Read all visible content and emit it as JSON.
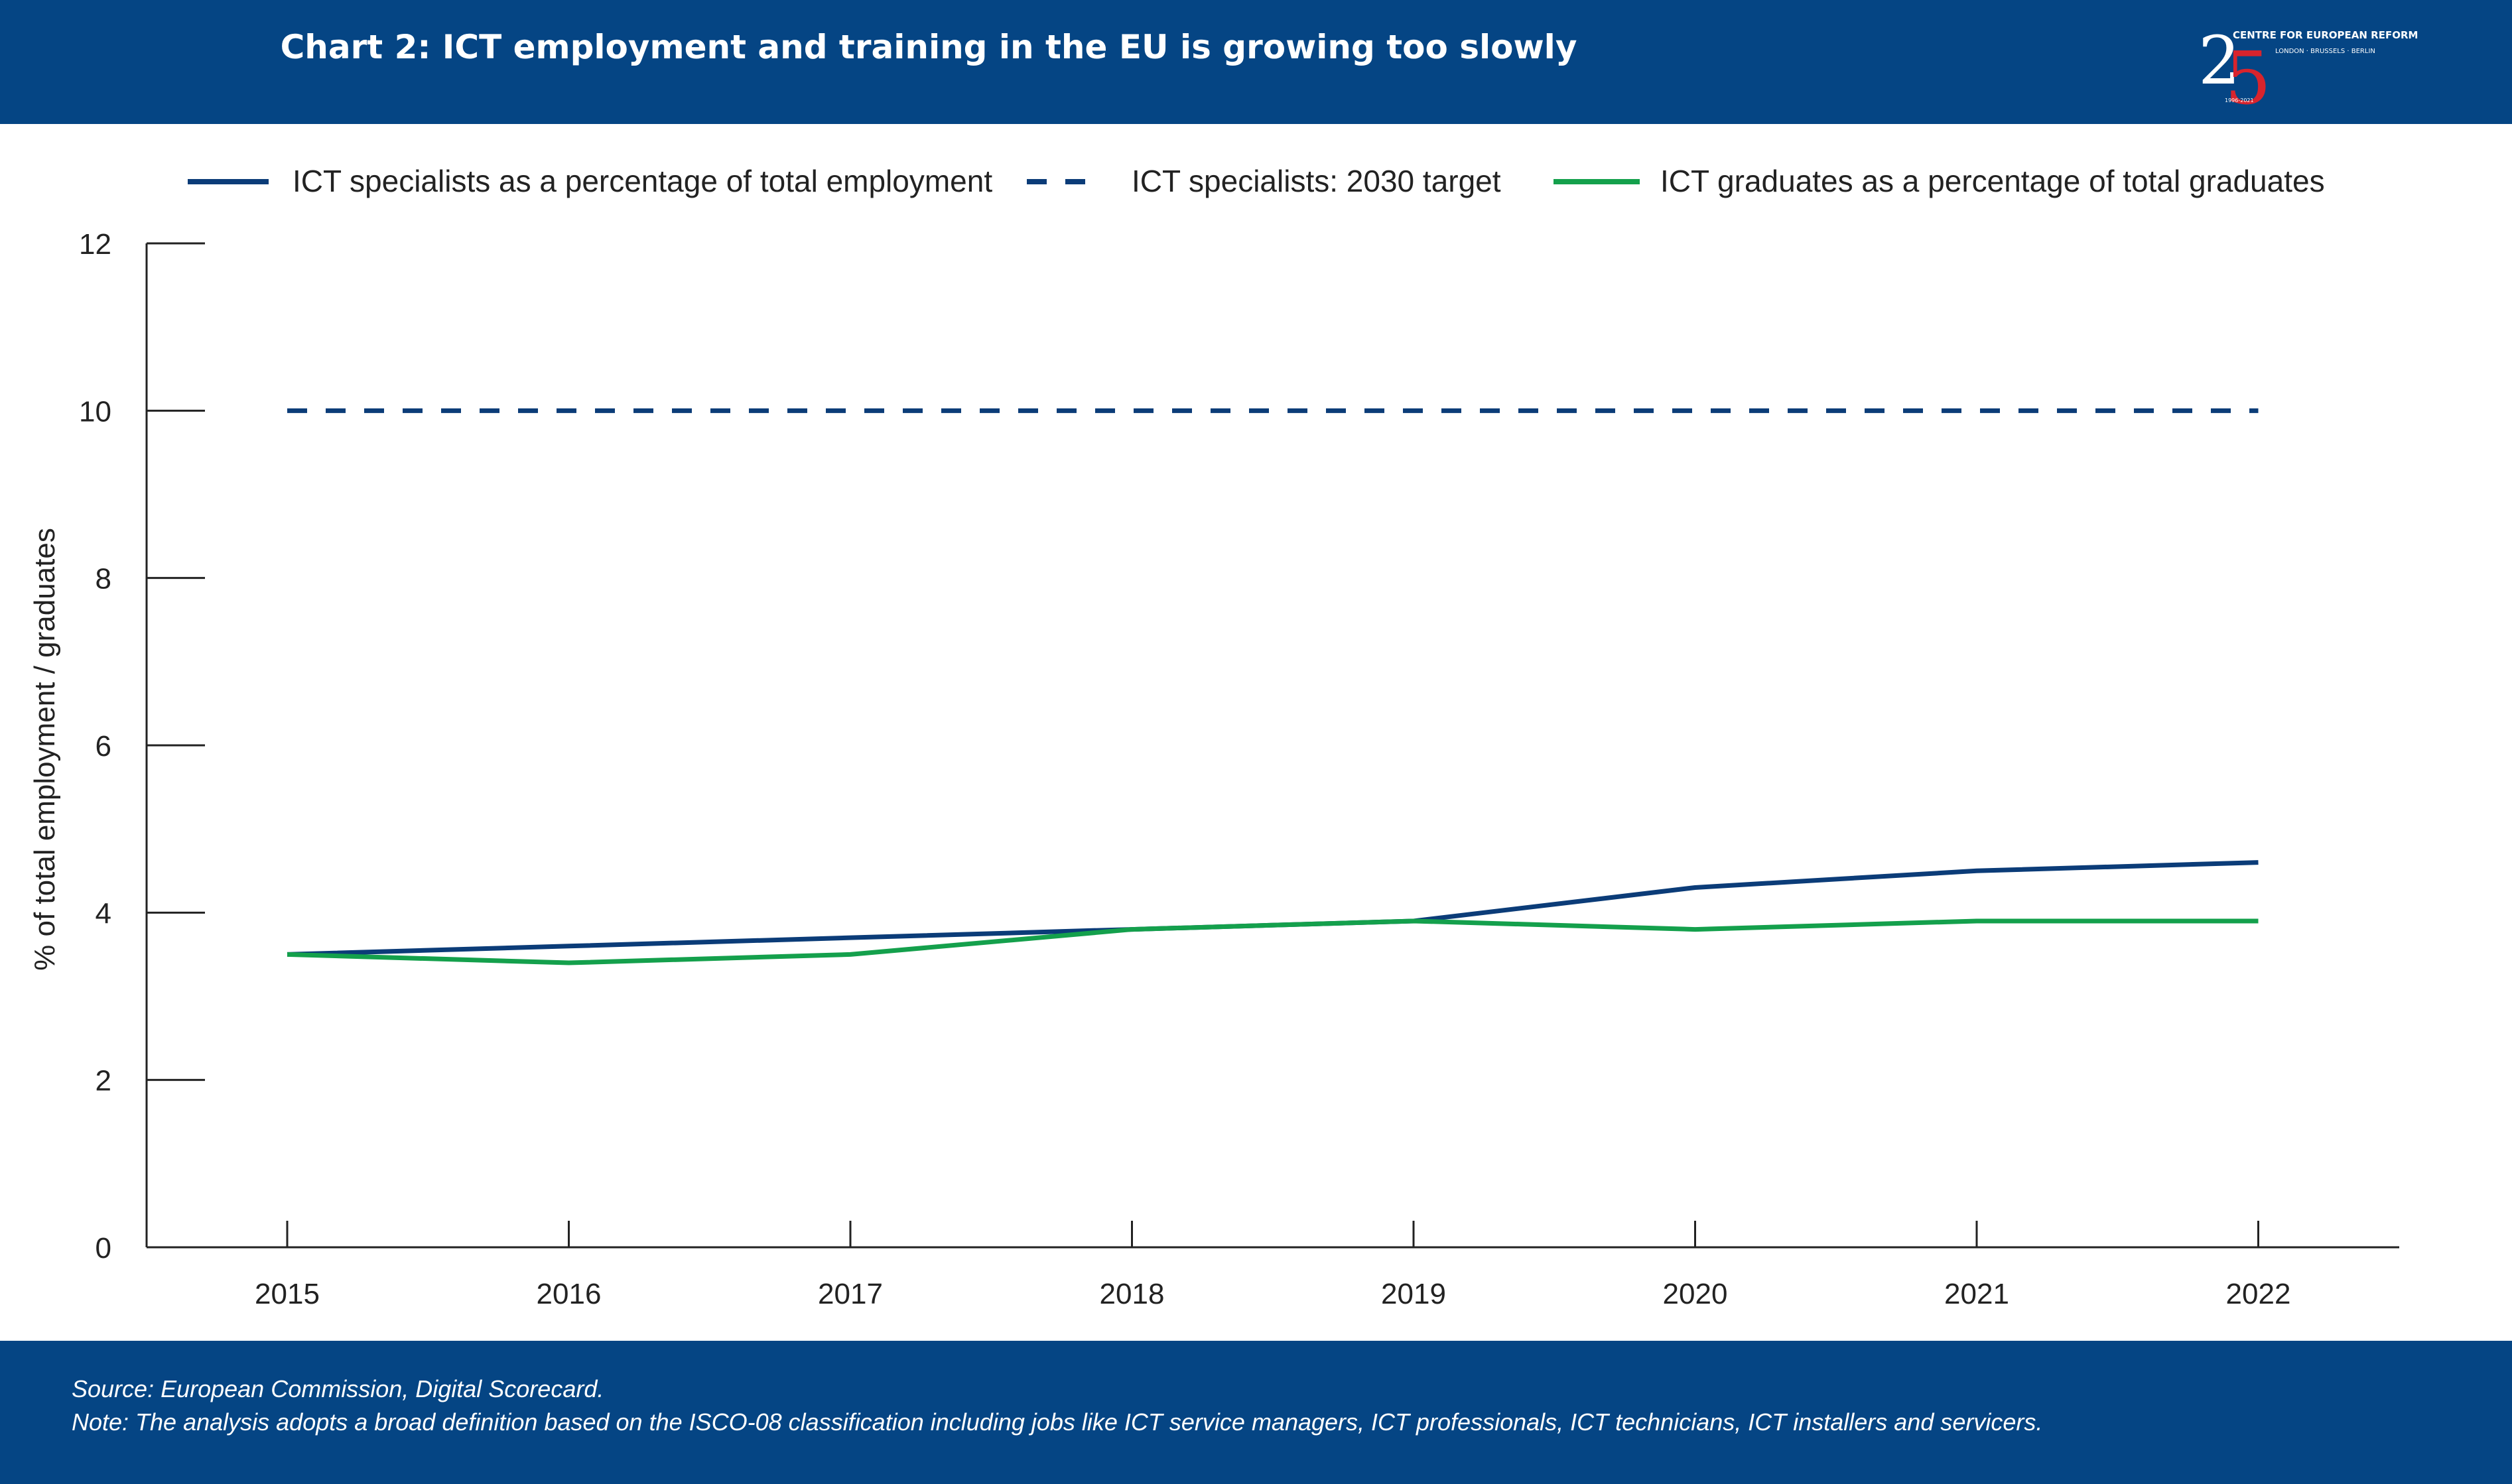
{
  "header": {
    "title": "Chart 2: ICT employment and training in the EU is growing too slowly",
    "logo": {
      "icon": "cer-25-logo-icon",
      "number_first": "2",
      "number_second": "5",
      "org_name": "CENTRE FOR EUROPEAN REFORM",
      "cities": "LONDON · BRUSSELS · BERLIN",
      "years": "1996-2021"
    }
  },
  "colors": {
    "band": "#054584",
    "employment": "#0b3c78",
    "target": "#0b3c78",
    "graduates": "#14a04c",
    "logo_red": "#d8242d"
  },
  "chart_data": {
    "type": "line",
    "x": [
      "2015",
      "2016",
      "2017",
      "2018",
      "2019",
      "2020",
      "2021",
      "2022"
    ],
    "ylabel": "% of total employment / graduates",
    "xlabel": "",
    "ylim": [
      0,
      12
    ],
    "yticks": [
      0,
      2,
      4,
      6,
      8,
      10,
      12
    ],
    "grid": false,
    "legend_position": "top",
    "series": [
      {
        "name": "ICT specialists as a percentage of total employment",
        "style": "solid",
        "color": "#0b3c78",
        "values": [
          3.5,
          3.6,
          3.7,
          3.8,
          3.9,
          4.3,
          4.5,
          4.6
        ]
      },
      {
        "name": "ICT specialists: 2030 target",
        "style": "dashed",
        "color": "#0b3c78",
        "values": [
          10,
          10,
          10,
          10,
          10,
          10,
          10,
          10
        ]
      },
      {
        "name": "ICT graduates as a percentage of total graduates",
        "style": "solid",
        "color": "#14a04c",
        "values": [
          3.5,
          3.4,
          3.5,
          3.8,
          3.9,
          3.8,
          3.9,
          3.9
        ]
      }
    ]
  },
  "footer": {
    "source": "Source: European Commission, Digital Scorecard.",
    "note": "Note: The analysis adopts a broad definition based on the ISCO-08 classification including jobs like ICT service managers, ICT professionals, ICT technicians, ICT installers and servicers."
  }
}
